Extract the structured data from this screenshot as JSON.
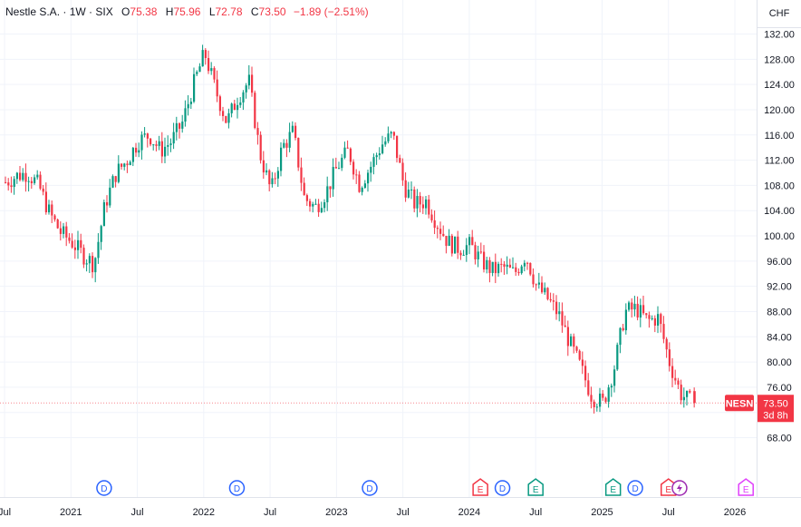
{
  "header": {
    "symbol": "Nestle S.A. · 1W · SIX",
    "open_label": "O",
    "open": "75.38",
    "high_label": "H",
    "high": "75.96",
    "low_label": "L",
    "low": "72.78",
    "close_label": "C",
    "close": "73.50",
    "change": "−1.89 (−2.51%)"
  },
  "axis": {
    "currency": "CHF"
  },
  "price_tag": {
    "ticker": "NESN",
    "price": "73.50",
    "countdown": "3d 8h"
  },
  "colors": {
    "up": "#089981",
    "down": "#f23645",
    "grid": "#f0f3fa",
    "text": "#131722",
    "event_blue": "#2962ff",
    "event_red": "#f23645",
    "event_green": "#089981",
    "event_purple": "#9c27b0",
    "event_magenta": "#e040fb"
  },
  "chart_data": {
    "type": "candlestick",
    "y_ticks": [
      68,
      72,
      76,
      80,
      84,
      88,
      92,
      96,
      100,
      104,
      108,
      112,
      116,
      120,
      124,
      128,
      132
    ],
    "y_tick_labels": [
      "68.00",
      "72.00",
      "76.00",
      "80.00",
      "84.00",
      "88.00",
      "92.00",
      "96.00",
      "100.00",
      "104.00",
      "108.00",
      "112.00",
      "116.00",
      "120.00",
      "124.00",
      "128.00",
      "132.00"
    ],
    "ylim": [
      65.5,
      134.5
    ],
    "x_axis_labels": [
      "Jul",
      "2021",
      "Jul",
      "2022",
      "Jul",
      "2023",
      "Jul",
      "2024",
      "Jul",
      "2025",
      "Jul",
      "2026"
    ],
    "x_axis_dates": [
      "2020-07",
      "2021-01",
      "2021-07",
      "2022-01",
      "2022-07",
      "2023-01",
      "2023-07",
      "2024-01",
      "2024-07",
      "2025-01",
      "2025-07",
      "2026-01"
    ],
    "last_price": 73.5,
    "close_path": [
      [
        "2020-07",
        108.5
      ],
      [
        "2020-08",
        109.5
      ],
      [
        "2020-09",
        110.0
      ],
      [
        "2020-10",
        108.0
      ],
      [
        "2020-11",
        103.5
      ],
      [
        "2020-12",
        100.5
      ],
      [
        "2021-01",
        99.0
      ],
      [
        "2021-02",
        97.0
      ],
      [
        "2021-03",
        95.5
      ],
      [
        "2021-04",
        105.0
      ],
      [
        "2021-05",
        110.0
      ],
      [
        "2021-06",
        112.0
      ],
      [
        "2021-07",
        115.0
      ],
      [
        "2021-08",
        116.0
      ],
      [
        "2021-09",
        113.5
      ],
      [
        "2021-10",
        115.0
      ],
      [
        "2021-11",
        118.0
      ],
      [
        "2021-12",
        124.0
      ],
      [
        "2022-01",
        129.0
      ],
      [
        "2022-02",
        123.0
      ],
      [
        "2022-03",
        118.0
      ],
      [
        "2022-04",
        122.0
      ],
      [
        "2022-05",
        124.5
      ],
      [
        "2022-06",
        113.0
      ],
      [
        "2022-07",
        107.0
      ],
      [
        "2022-08",
        114.0
      ],
      [
        "2022-09",
        116.5
      ],
      [
        "2022-10",
        106.0
      ],
      [
        "2022-11",
        104.5
      ],
      [
        "2022-12",
        107.0
      ],
      [
        "2023-01",
        111.0
      ],
      [
        "2023-02",
        113.5
      ],
      [
        "2023-03",
        108.0
      ],
      [
        "2023-04",
        111.0
      ],
      [
        "2023-05",
        114.5
      ],
      [
        "2023-06",
        116.0
      ],
      [
        "2023-07",
        108.0
      ],
      [
        "2023-08",
        105.0
      ],
      [
        "2023-09",
        105.5
      ],
      [
        "2023-10",
        102.0
      ],
      [
        "2023-11",
        99.0
      ],
      [
        "2023-12",
        98.0
      ],
      [
        "2024-01",
        98.5
      ],
      [
        "2024-02",
        96.0
      ],
      [
        "2024-03",
        94.5
      ],
      [
        "2024-04",
        95.0
      ],
      [
        "2024-05",
        94.0
      ],
      [
        "2024-06",
        97.0
      ],
      [
        "2024-07",
        92.0
      ],
      [
        "2024-08",
        90.0
      ],
      [
        "2024-09",
        87.5
      ],
      [
        "2024-10",
        83.0
      ],
      [
        "2024-11",
        79.0
      ],
      [
        "2024-12",
        74.5
      ],
      [
        "2025-01",
        73.5
      ],
      [
        "2025-02",
        79.0
      ],
      [
        "2025-03",
        88.0
      ],
      [
        "2025-04",
        88.5
      ],
      [
        "2025-05",
        86.5
      ],
      [
        "2025-06",
        87.0
      ],
      [
        "2025-07",
        80.0
      ],
      [
        "2025-08",
        75.0
      ],
      [
        "2025-09",
        73.5
      ]
    ],
    "events": [
      {
        "type": "D",
        "date": "2021-04"
      },
      {
        "type": "D",
        "date": "2022-04"
      },
      {
        "type": "D",
        "date": "2023-04"
      },
      {
        "type": "E",
        "date": "2024-02"
      },
      {
        "type": "D",
        "date": "2024-04"
      },
      {
        "type": "E",
        "date": "2024-07"
      },
      {
        "type": "E",
        "date": "2025-02"
      },
      {
        "type": "D",
        "date": "2025-04"
      },
      {
        "type": "E",
        "date": "2025-07"
      },
      {
        "type": "split",
        "date": "2025-08"
      },
      {
        "type": "E",
        "date": "2026-02"
      }
    ]
  }
}
